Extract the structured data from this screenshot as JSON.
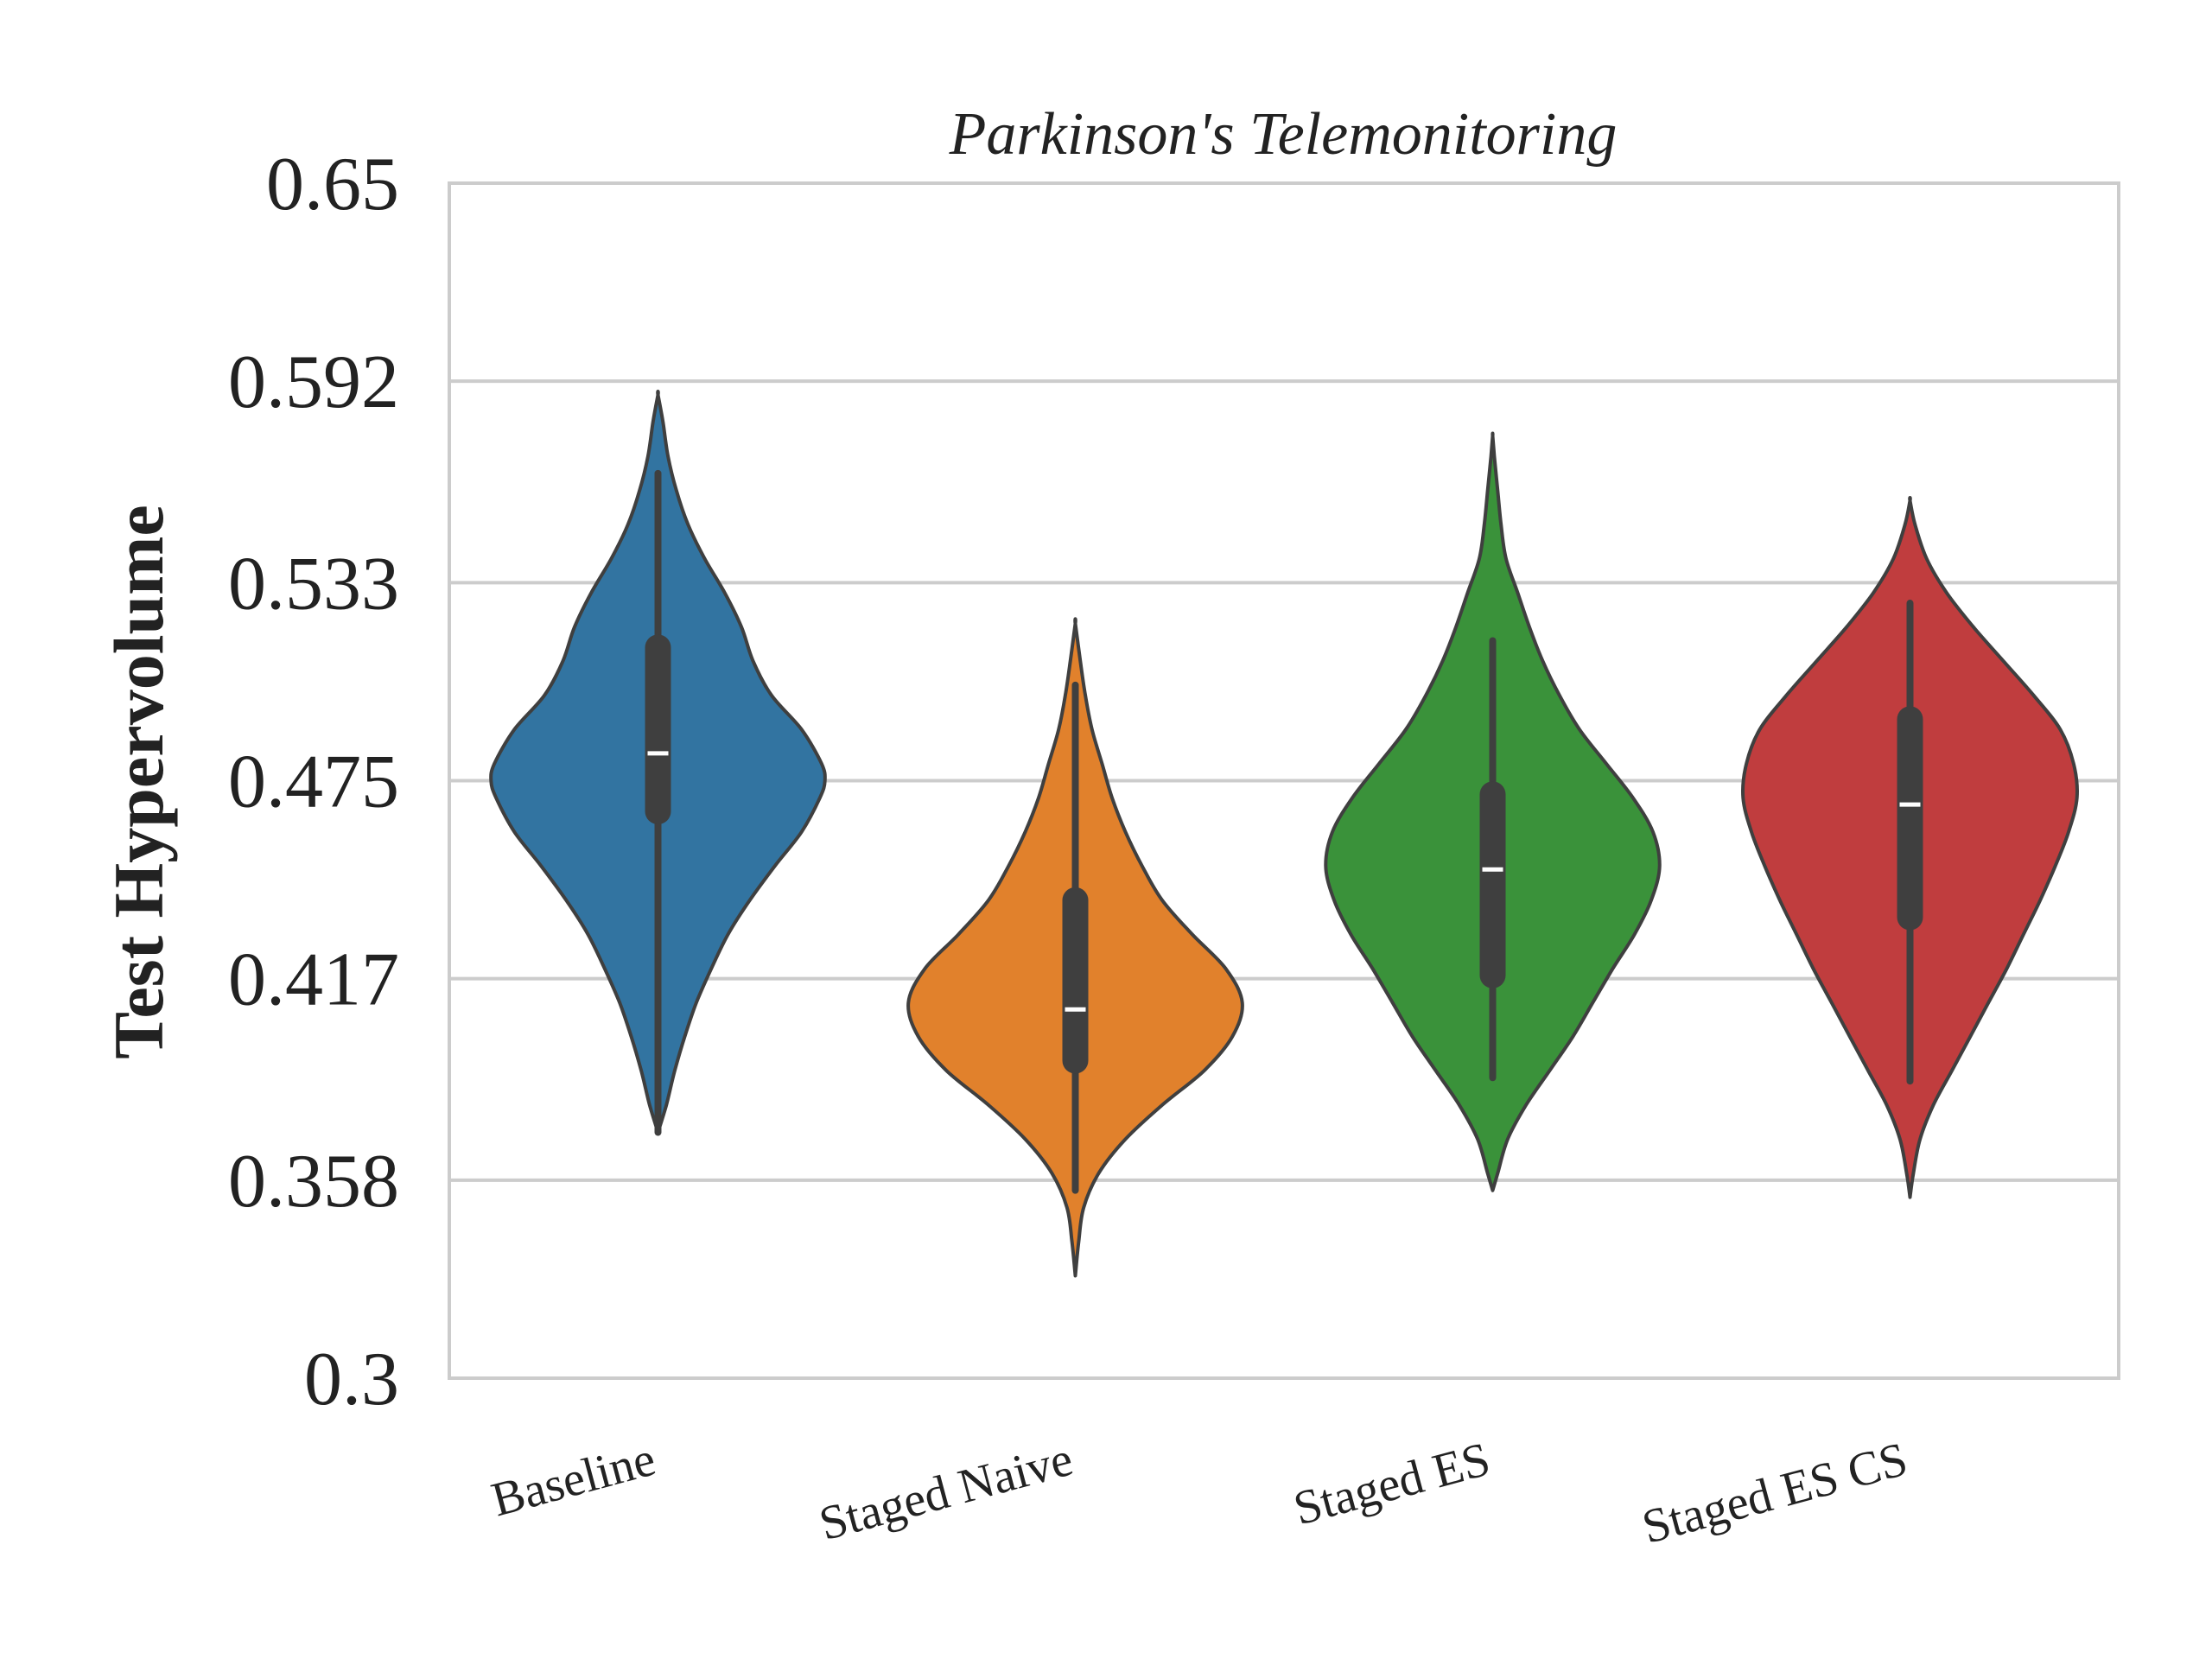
{
  "chart_data": {
    "type": "violin",
    "title": "Parkinson's Telemonitoring",
    "xlabel": "",
    "ylabel": "Test Hypervolume",
    "ylim": [
      0.3,
      0.65
    ],
    "yticks": [
      "0.3",
      "0.358",
      "0.417",
      "0.475",
      "0.533",
      "0.592",
      "0.65"
    ],
    "grid": true,
    "categories": [
      "Baseline",
      "Staged Naive",
      "Staged ES",
      "Staged ES CS"
    ],
    "series": [
      {
        "color": "#3274a1",
        "min": 0.372,
        "q1": 0.466,
        "median": 0.483,
        "q3": 0.514,
        "max": 0.565,
        "density": [
          [
            0.372,
            0.0
          ],
          [
            0.38,
            0.05
          ],
          [
            0.39,
            0.1
          ],
          [
            0.4,
            0.16
          ],
          [
            0.41,
            0.23
          ],
          [
            0.42,
            0.32
          ],
          [
            0.43,
            0.42
          ],
          [
            0.44,
            0.55
          ],
          [
            0.45,
            0.7
          ],
          [
            0.46,
            0.86
          ],
          [
            0.47,
            0.97
          ],
          [
            0.475,
            1.0
          ],
          [
            0.48,
            0.98
          ],
          [
            0.49,
            0.86
          ],
          [
            0.5,
            0.68
          ],
          [
            0.51,
            0.57
          ],
          [
            0.52,
            0.5
          ],
          [
            0.53,
            0.4
          ],
          [
            0.54,
            0.28
          ],
          [
            0.55,
            0.18
          ],
          [
            0.56,
            0.11
          ],
          [
            0.57,
            0.06
          ],
          [
            0.58,
            0.03
          ],
          [
            0.588,
            0.0
          ]
        ]
      },
      {
        "color": "#e1812c",
        "min": 0.355,
        "q1": 0.393,
        "median": 0.408,
        "q3": 0.44,
        "max": 0.503,
        "density": [
          [
            0.33,
            0.0
          ],
          [
            0.34,
            0.02
          ],
          [
            0.35,
            0.05
          ],
          [
            0.36,
            0.14
          ],
          [
            0.37,
            0.3
          ],
          [
            0.38,
            0.52
          ],
          [
            0.39,
            0.77
          ],
          [
            0.4,
            0.94
          ],
          [
            0.41,
            1.0
          ],
          [
            0.42,
            0.9
          ],
          [
            0.43,
            0.7
          ],
          [
            0.44,
            0.52
          ],
          [
            0.45,
            0.4
          ],
          [
            0.46,
            0.3
          ],
          [
            0.47,
            0.22
          ],
          [
            0.48,
            0.16
          ],
          [
            0.49,
            0.1
          ],
          [
            0.5,
            0.06
          ],
          [
            0.51,
            0.03
          ],
          [
            0.521,
            0.0
          ]
        ]
      },
      {
        "color": "#3a923a",
        "min": 0.388,
        "q1": 0.418,
        "median": 0.449,
        "q3": 0.471,
        "max": 0.516,
        "density": [
          [
            0.355,
            0.0
          ],
          [
            0.36,
            0.03
          ],
          [
            0.37,
            0.09
          ],
          [
            0.38,
            0.2
          ],
          [
            0.39,
            0.34
          ],
          [
            0.4,
            0.48
          ],
          [
            0.41,
            0.6
          ],
          [
            0.42,
            0.72
          ],
          [
            0.43,
            0.85
          ],
          [
            0.44,
            0.95
          ],
          [
            0.45,
            1.0
          ],
          [
            0.46,
            0.96
          ],
          [
            0.47,
            0.84
          ],
          [
            0.48,
            0.68
          ],
          [
            0.49,
            0.52
          ],
          [
            0.5,
            0.4
          ],
          [
            0.51,
            0.3
          ],
          [
            0.52,
            0.22
          ],
          [
            0.53,
            0.15
          ],
          [
            0.54,
            0.08
          ],
          [
            0.55,
            0.05
          ],
          [
            0.56,
            0.03
          ],
          [
            0.57,
            0.01
          ],
          [
            0.576,
            0.0
          ]
        ]
      },
      {
        "color": "#c03d3e",
        "min": 0.387,
        "q1": 0.435,
        "median": 0.468,
        "q3": 0.493,
        "max": 0.527,
        "density": [
          [
            0.353,
            0.0
          ],
          [
            0.36,
            0.02
          ],
          [
            0.37,
            0.06
          ],
          [
            0.38,
            0.14
          ],
          [
            0.39,
            0.25
          ],
          [
            0.4,
            0.36
          ],
          [
            0.41,
            0.47
          ],
          [
            0.42,
            0.58
          ],
          [
            0.43,
            0.68
          ],
          [
            0.44,
            0.78
          ],
          [
            0.45,
            0.87
          ],
          [
            0.46,
            0.95
          ],
          [
            0.47,
            1.0
          ],
          [
            0.48,
            0.98
          ],
          [
            0.49,
            0.9
          ],
          [
            0.5,
            0.74
          ],
          [
            0.51,
            0.56
          ],
          [
            0.52,
            0.38
          ],
          [
            0.53,
            0.22
          ],
          [
            0.54,
            0.1
          ],
          [
            0.55,
            0.03
          ],
          [
            0.557,
            0.0
          ]
        ]
      }
    ]
  }
}
